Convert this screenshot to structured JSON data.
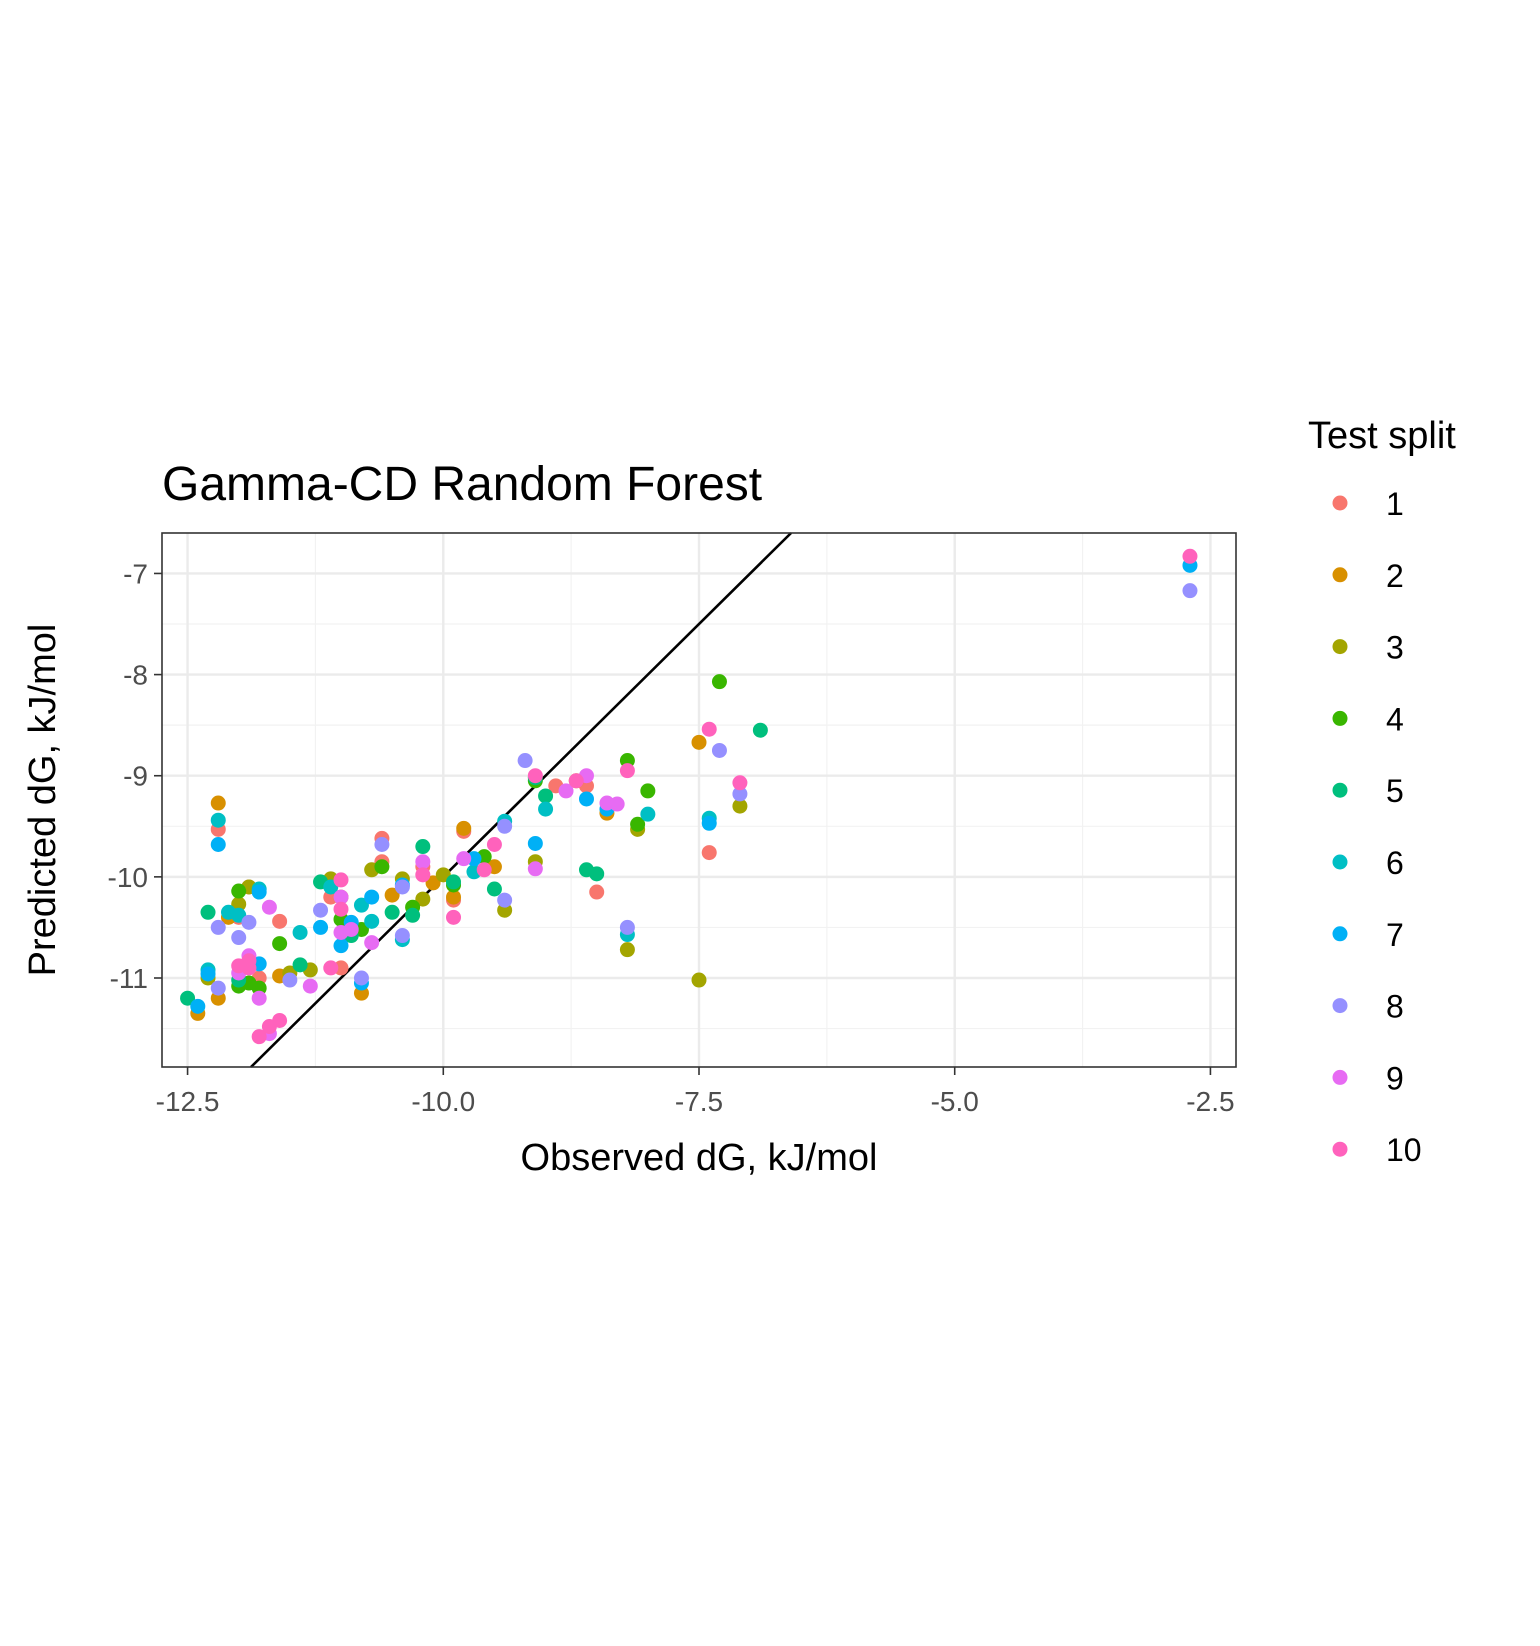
{
  "chart_data": {
    "type": "scatter",
    "title": "Gamma-CD Random Forest",
    "xlabel": "Observed dG, kJ/mol",
    "ylabel": "Predicted dG, kJ/mol",
    "xlim": [
      -12.75,
      -2.25
    ],
    "ylim": [
      -11.88,
      -6.6
    ],
    "x_ticks": [
      -12.5,
      -10.0,
      -7.5,
      -5.0,
      -2.5
    ],
    "x_tick_labels": [
      "-12.5",
      "-10.0",
      "-7.5",
      "-5.0",
      "-2.5"
    ],
    "y_ticks": [
      -7,
      -8,
      -9,
      -10,
      -11
    ],
    "y_tick_labels": [
      "-7",
      "-8",
      "-9",
      "-10",
      "-11"
    ],
    "grid": true,
    "reference_line": "y = x",
    "legend": {
      "title": "Test split",
      "placement": "right"
    },
    "series": [
      {
        "name": "1",
        "color": "#F8766D",
        "points": [
          [
            -12.2,
            -9.53
          ],
          [
            -11.6,
            -10.44
          ],
          [
            -11.9,
            -10.1
          ],
          [
            -11.1,
            -10.2
          ],
          [
            -10.6,
            -9.62
          ],
          [
            -10.2,
            -9.9
          ],
          [
            -9.9,
            -10.23
          ],
          [
            -9.8,
            -9.55
          ],
          [
            -8.5,
            -10.15
          ],
          [
            -8.6,
            -9.1
          ],
          [
            -7.4,
            -9.76
          ],
          [
            -11.0,
            -10.9
          ],
          [
            -11.8,
            -11.0
          ],
          [
            -10.6,
            -9.85
          ],
          [
            -12.0,
            -10.4
          ],
          [
            -8.9,
            -9.1
          ]
        ]
      },
      {
        "name": "2",
        "color": "#D89000",
        "points": [
          [
            -12.2,
            -9.27
          ],
          [
            -12.4,
            -11.35
          ],
          [
            -12.2,
            -11.2
          ],
          [
            -11.6,
            -10.98
          ],
          [
            -10.8,
            -11.15
          ],
          [
            -10.5,
            -10.18
          ],
          [
            -10.1,
            -10.06
          ],
          [
            -9.8,
            -9.52
          ],
          [
            -9.5,
            -9.9
          ],
          [
            -8.4,
            -9.37
          ],
          [
            -7.5,
            -8.67
          ],
          [
            -11.0,
            -10.2
          ],
          [
            -12.1,
            -10.4
          ],
          [
            -9.9,
            -10.2
          ],
          [
            -8.7,
            -9.05
          ]
        ]
      },
      {
        "name": "3",
        "color": "#A3A500",
        "points": [
          [
            -12.0,
            -10.27
          ],
          [
            -11.9,
            -10.1
          ],
          [
            -11.3,
            -10.92
          ],
          [
            -11.1,
            -10.02
          ],
          [
            -10.7,
            -9.93
          ],
          [
            -10.4,
            -10.02
          ],
          [
            -10.0,
            -9.98
          ],
          [
            -9.4,
            -10.33
          ],
          [
            -9.1,
            -9.85
          ],
          [
            -8.2,
            -10.72
          ],
          [
            -8.1,
            -9.53
          ],
          [
            -7.5,
            -11.02
          ],
          [
            -7.1,
            -9.3
          ],
          [
            -10.2,
            -10.22
          ],
          [
            -12.3,
            -11.0
          ],
          [
            -11.5,
            -10.95
          ]
        ]
      },
      {
        "name": "4",
        "color": "#39B600",
        "points": [
          [
            -12.0,
            -10.14
          ],
          [
            -11.8,
            -11.1
          ],
          [
            -11.6,
            -10.66
          ],
          [
            -11.0,
            -10.42
          ],
          [
            -10.8,
            -10.52
          ],
          [
            -10.6,
            -9.9
          ],
          [
            -10.3,
            -10.3
          ],
          [
            -9.6,
            -9.8
          ],
          [
            -9.1,
            -9.05
          ],
          [
            -8.2,
            -8.85
          ],
          [
            -8.1,
            -9.48
          ],
          [
            -8.0,
            -9.15
          ],
          [
            -7.3,
            -8.07
          ],
          [
            -12.0,
            -11.08
          ],
          [
            -11.9,
            -11.05
          ],
          [
            -9.9,
            -10.08
          ]
        ]
      },
      {
        "name": "5",
        "color": "#00BF7D",
        "points": [
          [
            -12.5,
            -11.2
          ],
          [
            -12.3,
            -10.35
          ],
          [
            -12.0,
            -11.02
          ],
          [
            -11.4,
            -10.87
          ],
          [
            -10.9,
            -10.58
          ],
          [
            -10.5,
            -10.35
          ],
          [
            -10.2,
            -9.7
          ],
          [
            -9.9,
            -10.05
          ],
          [
            -9.5,
            -10.12
          ],
          [
            -9.1,
            -9.02
          ],
          [
            -9.0,
            -9.2
          ],
          [
            -8.6,
            -9.93
          ],
          [
            -8.5,
            -9.97
          ],
          [
            -6.9,
            -8.55
          ],
          [
            -11.2,
            -10.05
          ],
          [
            -10.3,
            -10.38
          ]
        ]
      },
      {
        "name": "6",
        "color": "#00BFC4",
        "points": [
          [
            -12.2,
            -9.44
          ],
          [
            -12.3,
            -10.92
          ],
          [
            -12.1,
            -10.35
          ],
          [
            -11.4,
            -10.55
          ],
          [
            -11.1,
            -10.1
          ],
          [
            -10.8,
            -10.28
          ],
          [
            -10.7,
            -10.44
          ],
          [
            -10.4,
            -10.62
          ],
          [
            -9.7,
            -9.95
          ],
          [
            -9.4,
            -9.45
          ],
          [
            -9.0,
            -9.33
          ],
          [
            -8.2,
            -10.57
          ],
          [
            -7.4,
            -9.42
          ],
          [
            -8.0,
            -9.38
          ],
          [
            -11.8,
            -10.12
          ],
          [
            -12.0,
            -10.38
          ]
        ]
      },
      {
        "name": "7",
        "color": "#00B0F6",
        "points": [
          [
            -12.2,
            -9.68
          ],
          [
            -12.4,
            -11.28
          ],
          [
            -12.3,
            -10.96
          ],
          [
            -11.8,
            -10.86
          ],
          [
            -11.2,
            -10.5
          ],
          [
            -11.0,
            -10.68
          ],
          [
            -10.8,
            -11.05
          ],
          [
            -10.7,
            -10.2
          ],
          [
            -10.4,
            -10.08
          ],
          [
            -9.7,
            -9.82
          ],
          [
            -9.1,
            -9.67
          ],
          [
            -8.6,
            -9.23
          ],
          [
            -8.4,
            -9.33
          ],
          [
            -7.4,
            -9.47
          ],
          [
            -2.7,
            -6.92
          ],
          [
            -11.8,
            -10.15
          ],
          [
            -10.9,
            -10.45
          ]
        ]
      },
      {
        "name": "8",
        "color": "#9590FF",
        "points": [
          [
            -12.2,
            -10.5
          ],
          [
            -12.2,
            -11.1
          ],
          [
            -12.0,
            -10.6
          ],
          [
            -11.5,
            -11.02
          ],
          [
            -11.2,
            -10.33
          ],
          [
            -10.8,
            -11.0
          ],
          [
            -10.6,
            -9.68
          ],
          [
            -10.4,
            -10.58
          ],
          [
            -9.4,
            -10.23
          ],
          [
            -9.4,
            -9.5
          ],
          [
            -9.2,
            -8.85
          ],
          [
            -8.2,
            -10.5
          ],
          [
            -7.3,
            -8.75
          ],
          [
            -7.1,
            -9.18
          ],
          [
            -2.7,
            -7.17
          ],
          [
            -11.9,
            -10.45
          ],
          [
            -10.4,
            -10.1
          ]
        ]
      },
      {
        "name": "9",
        "color": "#E76BF3",
        "points": [
          [
            -11.7,
            -10.3
          ],
          [
            -11.8,
            -11.2
          ],
          [
            -11.7,
            -11.55
          ],
          [
            -11.3,
            -11.08
          ],
          [
            -11.0,
            -10.55
          ],
          [
            -10.9,
            -10.52
          ],
          [
            -10.7,
            -10.65
          ],
          [
            -10.2,
            -9.85
          ],
          [
            -9.8,
            -9.82
          ],
          [
            -9.1,
            -9.92
          ],
          [
            -8.6,
            -9.0
          ],
          [
            -8.4,
            -9.27
          ],
          [
            -8.3,
            -9.28
          ],
          [
            -12.0,
            -10.95
          ],
          [
            -11.9,
            -10.78
          ],
          [
            -11.0,
            -10.2
          ],
          [
            -8.8,
            -9.15
          ]
        ]
      },
      {
        "name": "10",
        "color": "#FF62BC",
        "points": [
          [
            -12.0,
            -10.88
          ],
          [
            -11.9,
            -10.83
          ],
          [
            -11.7,
            -11.48
          ],
          [
            -11.6,
            -11.42
          ],
          [
            -11.1,
            -10.9
          ],
          [
            -11.0,
            -10.03
          ],
          [
            -11.0,
            -10.32
          ],
          [
            -10.2,
            -9.98
          ],
          [
            -9.9,
            -10.4
          ],
          [
            -9.5,
            -9.68
          ],
          [
            -9.6,
            -9.93
          ],
          [
            -9.1,
            -9.0
          ],
          [
            -8.7,
            -9.05
          ],
          [
            -8.2,
            -8.95
          ],
          [
            -7.4,
            -8.54
          ],
          [
            -7.1,
            -9.07
          ],
          [
            -2.7,
            -6.83
          ],
          [
            -11.8,
            -11.58
          ],
          [
            -11.9,
            -10.9
          ]
        ]
      }
    ]
  }
}
